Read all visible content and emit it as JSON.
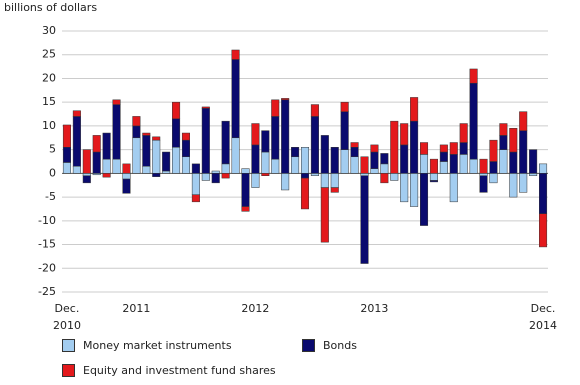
{
  "chart_data": {
    "type": "stacked-bar",
    "y_label": "billions of dollars",
    "categories": [
      "Dec. 2010",
      null,
      null,
      null,
      null,
      null,
      null,
      "2011",
      null,
      null,
      null,
      null,
      null,
      null,
      null,
      null,
      null,
      null,
      null,
      "2012",
      null,
      null,
      null,
      null,
      null,
      null,
      null,
      null,
      null,
      null,
      null,
      "2013",
      null,
      null,
      null,
      null,
      null,
      null,
      null,
      null,
      null,
      null,
      null,
      null,
      null,
      null,
      null,
      null,
      "Dec. 2014"
    ],
    "series": [
      {
        "name": "Money market instruments",
        "color": "#a3cdf0",
        "values": [
          2.3,
          1.5,
          -0.5,
          -0.3,
          3,
          3,
          -1.2,
          7.5,
          1.5,
          7,
          0.5,
          5.5,
          3.5,
          -4.5,
          -1.5,
          0.5,
          2,
          7.5,
          1,
          -3,
          4.5,
          3,
          -3.5,
          3.5,
          5.5,
          -0.5,
          -3,
          -3,
          5,
          3.5,
          -0.5,
          1,
          2,
          -1.5,
          -6,
          -7,
          4,
          -1.5,
          2.5,
          -6,
          4,
          3,
          -0.5,
          -2,
          5,
          -5,
          -4,
          -0.5,
          2
        ]
      },
      {
        "name": "Bonds",
        "color": "#0a0a6e",
        "values": [
          3.2,
          10.5,
          -1.5,
          4.5,
          5.5,
          11.5,
          -3,
          2.5,
          6.5,
          -0.7,
          4,
          6,
          3.5,
          2,
          13.7,
          -2,
          9,
          16.5,
          -7,
          6,
          4.5,
          9,
          15.5,
          2,
          -1,
          12,
          8,
          5.5,
          8,
          2,
          -18.5,
          3.5,
          2.2,
          0,
          6,
          11,
          -11,
          -0.3,
          2,
          4,
          2.5,
          16,
          -3.5,
          2.5,
          3,
          4.5,
          9,
          5,
          -8.5
        ]
      },
      {
        "name": "Equity and investment fund shares",
        "color": "#e3191c",
        "values": [
          4.7,
          1.2,
          5,
          3.5,
          -0.8,
          1,
          2,
          2,
          0.5,
          0.7,
          0,
          3.5,
          1.5,
          -1.5,
          0.3,
          0,
          -1,
          2,
          -1,
          4.5,
          -0.5,
          3.5,
          0.3,
          0,
          -6.5,
          2.5,
          -11.5,
          -1,
          2,
          1,
          3.5,
          1.5,
          -2,
          11,
          4.5,
          5,
          2.5,
          3,
          1.5,
          2.5,
          4,
          3,
          3,
          4.5,
          2.5,
          5,
          4,
          0,
          -7
        ]
      }
    ],
    "ylim": [
      -25,
      30
    ],
    "yticks": [
      30,
      25,
      20,
      15,
      10,
      5,
      0,
      -5,
      -10,
      -15,
      -20,
      -25
    ],
    "grid": true
  }
}
